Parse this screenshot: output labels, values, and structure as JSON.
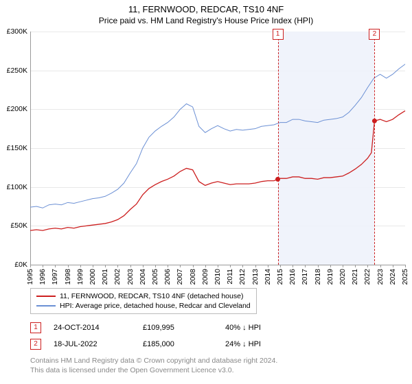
{
  "title": "11, FERNWOOD, REDCAR, TS10 4NF",
  "subtitle": "Price paid vs. HM Land Registry's House Price Index (HPI)",
  "chart": {
    "type": "line",
    "background_color": "#ffffff",
    "grid_color": "#e8e8e8",
    "axis_color": "#999999",
    "font_size_axis": 10.5,
    "font_size_title": 13,
    "font_size_subtitle": 12,
    "y": {
      "min": 0,
      "max": 300000,
      "step": 50000,
      "labels": [
        "£0K",
        "£50K",
        "£100K",
        "£150K",
        "£200K",
        "£250K",
        "£300K"
      ]
    },
    "x": {
      "min": 1995,
      "max": 2025,
      "step": 1,
      "labels": [
        "1995",
        "1996",
        "1997",
        "1998",
        "1999",
        "2000",
        "2001",
        "2002",
        "2003",
        "2004",
        "2005",
        "2006",
        "2007",
        "2008",
        "2009",
        "2010",
        "2011",
        "2012",
        "2013",
        "2014",
        "2015",
        "2016",
        "2017",
        "2018",
        "2019",
        "2020",
        "2021",
        "2022",
        "2023",
        "2024",
        "2025"
      ]
    },
    "shade_region": {
      "x_start": 2014.81,
      "x_end": 2022.55,
      "fill": "#eef2fb",
      "opacity": 0.9
    },
    "series": [
      {
        "name": "HPI: Average price, detached house, Redcar and Cleveland",
        "color": "#6a8fd4",
        "line_width": 1,
        "data": [
          [
            1995,
            74000
          ],
          [
            1995.5,
            75000
          ],
          [
            1996,
            73000
          ],
          [
            1996.5,
            77000
          ],
          [
            1997,
            78000
          ],
          [
            1997.5,
            77000
          ],
          [
            1998,
            80000
          ],
          [
            1998.5,
            79000
          ],
          [
            1999,
            81000
          ],
          [
            1999.5,
            83000
          ],
          [
            2000,
            85000
          ],
          [
            2000.5,
            86000
          ],
          [
            2001,
            88000
          ],
          [
            2001.5,
            92000
          ],
          [
            2002,
            97000
          ],
          [
            2002.5,
            105000
          ],
          [
            2003,
            118000
          ],
          [
            2003.5,
            130000
          ],
          [
            2004,
            150000
          ],
          [
            2004.5,
            164000
          ],
          [
            2005,
            172000
          ],
          [
            2005.5,
            178000
          ],
          [
            2006,
            183000
          ],
          [
            2006.5,
            190000
          ],
          [
            2007,
            200000
          ],
          [
            2007.5,
            207000
          ],
          [
            2008,
            203000
          ],
          [
            2008.5,
            178000
          ],
          [
            2009,
            170000
          ],
          [
            2009.5,
            175000
          ],
          [
            2010,
            179000
          ],
          [
            2010.5,
            175000
          ],
          [
            2011,
            172000
          ],
          [
            2011.5,
            174000
          ],
          [
            2012,
            173000
          ],
          [
            2012.5,
            174000
          ],
          [
            2013,
            175000
          ],
          [
            2013.5,
            178000
          ],
          [
            2014,
            179000
          ],
          [
            2014.5,
            180000
          ],
          [
            2015,
            183000
          ],
          [
            2015.5,
            183000
          ],
          [
            2016,
            187000
          ],
          [
            2016.5,
            187000
          ],
          [
            2017,
            185000
          ],
          [
            2017.5,
            184000
          ],
          [
            2018,
            183000
          ],
          [
            2018.5,
            186000
          ],
          [
            2019,
            187000
          ],
          [
            2019.5,
            188000
          ],
          [
            2020,
            190000
          ],
          [
            2020.5,
            196000
          ],
          [
            2021,
            205000
          ],
          [
            2021.5,
            215000
          ],
          [
            2022,
            228000
          ],
          [
            2022.5,
            240000
          ],
          [
            2023,
            245000
          ],
          [
            2023.5,
            240000
          ],
          [
            2024,
            245000
          ],
          [
            2024.5,
            252000
          ],
          [
            2025,
            258000
          ]
        ]
      },
      {
        "name": "11, FERNWOOD, REDCAR, TS10 4NF (detached house)",
        "color": "#cc1e1e",
        "line_width": 1.3,
        "data": [
          [
            1995,
            44000
          ],
          [
            1995.5,
            45000
          ],
          [
            1996,
            44000
          ],
          [
            1996.5,
            46000
          ],
          [
            1997,
            47000
          ],
          [
            1997.5,
            46000
          ],
          [
            1998,
            48000
          ],
          [
            1998.5,
            47000
          ],
          [
            1999,
            49000
          ],
          [
            1999.5,
            50000
          ],
          [
            2000,
            51000
          ],
          [
            2000.5,
            52000
          ],
          [
            2001,
            53000
          ],
          [
            2001.5,
            55000
          ],
          [
            2002,
            58000
          ],
          [
            2002.5,
            63000
          ],
          [
            2003,
            71000
          ],
          [
            2003.5,
            78000
          ],
          [
            2004,
            90000
          ],
          [
            2004.5,
            98000
          ],
          [
            2005,
            103000
          ],
          [
            2005.5,
            107000
          ],
          [
            2006,
            110000
          ],
          [
            2006.5,
            114000
          ],
          [
            2007,
            120000
          ],
          [
            2007.5,
            124000
          ],
          [
            2008,
            122000
          ],
          [
            2008.5,
            107000
          ],
          [
            2009,
            102000
          ],
          [
            2009.5,
            105000
          ],
          [
            2010,
            107000
          ],
          [
            2010.5,
            105000
          ],
          [
            2011,
            103000
          ],
          [
            2011.5,
            104000
          ],
          [
            2012,
            104000
          ],
          [
            2012.5,
            104000
          ],
          [
            2013,
            105000
          ],
          [
            2013.5,
            107000
          ],
          [
            2014,
            108000
          ],
          [
            2014.5,
            108000
          ],
          [
            2014.81,
            109995
          ],
          [
            2015,
            111000
          ],
          [
            2015.5,
            111000
          ],
          [
            2016,
            113000
          ],
          [
            2016.5,
            113000
          ],
          [
            2017,
            111000
          ],
          [
            2017.5,
            111000
          ],
          [
            2018,
            110000
          ],
          [
            2018.5,
            112000
          ],
          [
            2019,
            112000
          ],
          [
            2019.5,
            113000
          ],
          [
            2020,
            114000
          ],
          [
            2020.5,
            118000
          ],
          [
            2021,
            123000
          ],
          [
            2021.5,
            129000
          ],
          [
            2022,
            137000
          ],
          [
            2022.3,
            144000
          ],
          [
            2022.55,
            185000
          ],
          [
            2023,
            187000
          ],
          [
            2023.5,
            184000
          ],
          [
            2024,
            187000
          ],
          [
            2024.5,
            193000
          ],
          [
            2025,
            198000
          ]
        ]
      }
    ],
    "markers": [
      {
        "n": "1",
        "year": 2014.81,
        "price": 109995,
        "color": "#cc1e1e"
      },
      {
        "n": "2",
        "year": 2022.55,
        "price": 185000,
        "color": "#cc1e1e"
      }
    ]
  },
  "legend": {
    "border_color": "#bbbbbb",
    "items": [
      {
        "color": "#cc1e1e",
        "label": "11, FERNWOOD, REDCAR, TS10 4NF (detached house)"
      },
      {
        "color": "#6a8fd4",
        "label": "HPI: Average price, detached house, Redcar and Cleveland"
      }
    ]
  },
  "sales": [
    {
      "n": "1",
      "color": "#cc1e1e",
      "date": "24-OCT-2014",
      "price": "£109,995",
      "delta": "40% ↓ HPI"
    },
    {
      "n": "2",
      "color": "#cc1e1e",
      "date": "18-JUL-2022",
      "price": "£185,000",
      "delta": "24% ↓ HPI"
    }
  ],
  "footer": {
    "line1": "Contains HM Land Registry data © Crown copyright and database right 2024.",
    "line2": "This data is licensed under the Open Government Licence v3.0."
  }
}
